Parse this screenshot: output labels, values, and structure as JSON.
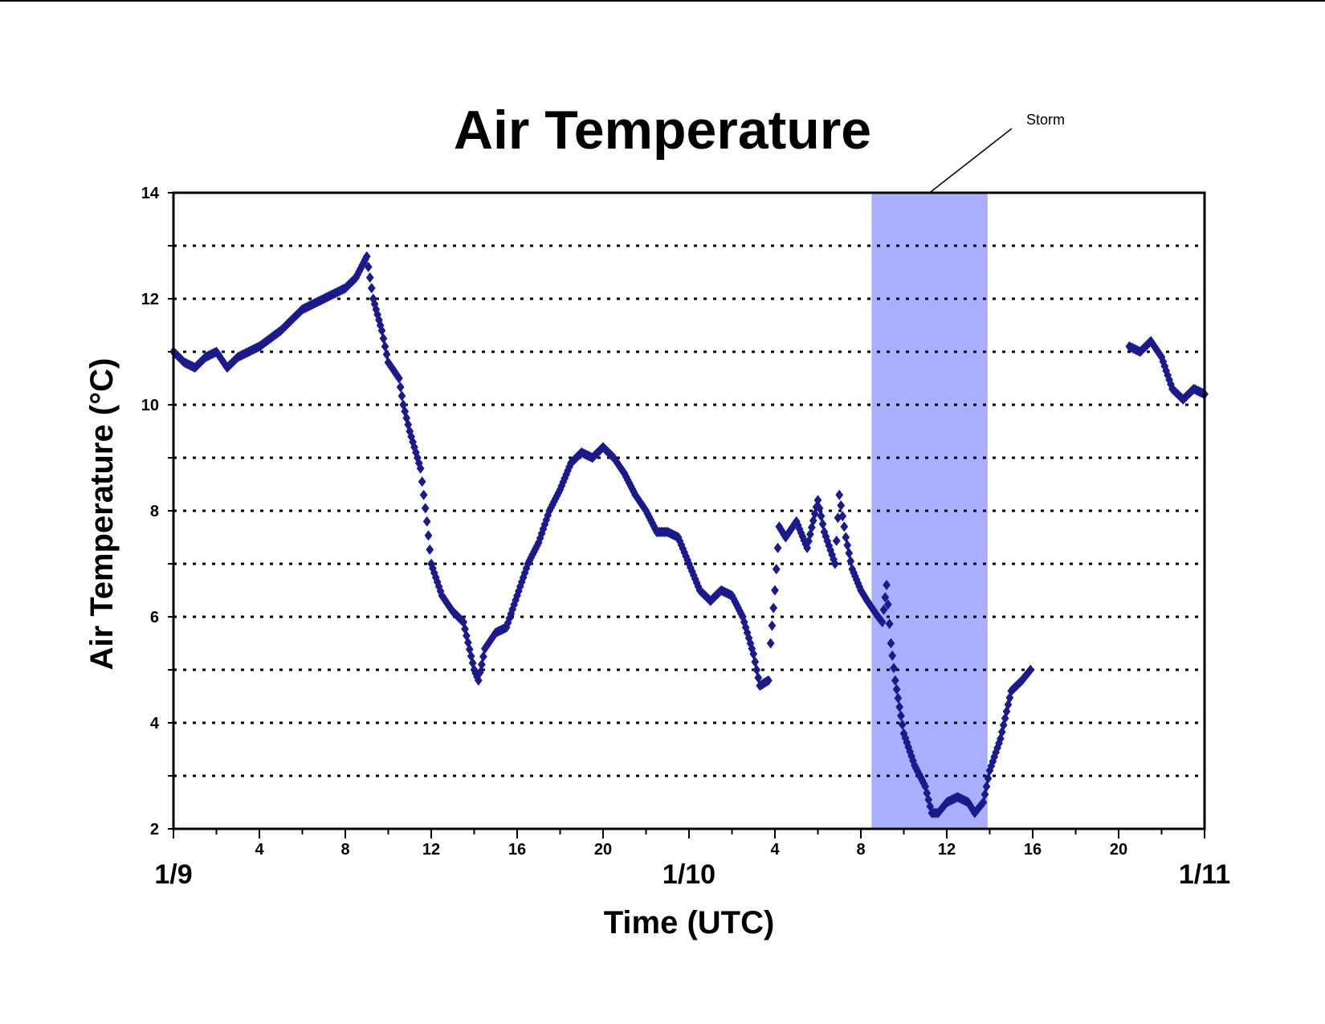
{
  "chart_data": {
    "type": "scatter",
    "title": "Air Temperature",
    "xlabel": "Time (UTC)",
    "ylabel": "Air Temperature (°C)",
    "x_unit": "hours since 1/9 00:00 UTC",
    "xlim": [
      0,
      48
    ],
    "ylim": [
      2,
      14
    ],
    "y_ticks": [
      "2",
      "4",
      "6",
      "8",
      "10",
      "12",
      "14"
    ],
    "x_hour_ticks": [
      {
        "x": 4,
        "label": "4"
      },
      {
        "x": 8,
        "label": "8"
      },
      {
        "x": 12,
        "label": "12"
      },
      {
        "x": 16,
        "label": "16"
      },
      {
        "x": 20,
        "label": "20"
      },
      {
        "x": 28,
        "label": "4"
      },
      {
        "x": 32,
        "label": "8"
      },
      {
        "x": 36,
        "label": "12"
      },
      {
        "x": 40,
        "label": "16"
      },
      {
        "x": 44,
        "label": "20"
      }
    ],
    "x_date_ticks": [
      {
        "x": 0,
        "label": "1/9"
      },
      {
        "x": 24,
        "label": "1/10"
      },
      {
        "x": 48,
        "label": "1/11"
      }
    ],
    "grid": "horizontal dotted every 1 °C",
    "marker": "diamond",
    "marker_color": "#1a1a8c",
    "highlight": {
      "label": "Storm",
      "x_start": 32.5,
      "x_end": 37.9,
      "color": "#aab0ff"
    },
    "series": [
      {
        "name": "",
        "segments": [
          [
            [
              0,
              11.0
            ],
            [
              0.5,
              10.8
            ],
            [
              1,
              10.7
            ],
            [
              1.5,
              10.9
            ],
            [
              2,
              11.0
            ],
            [
              2.5,
              10.7
            ],
            [
              3,
              10.9
            ],
            [
              4,
              11.1
            ],
            [
              5,
              11.4
            ],
            [
              6,
              11.8
            ],
            [
              7,
              12.0
            ],
            [
              8,
              12.2
            ],
            [
              8.5,
              12.4
            ],
            [
              9,
              12.8
            ],
            [
              9.3,
              12.0
            ],
            [
              9.7,
              11.4
            ],
            [
              10,
              10.8
            ],
            [
              10.5,
              10.5
            ],
            [
              10.7,
              10.0
            ],
            [
              11,
              9.5
            ],
            [
              11.5,
              8.8
            ],
            [
              11.8,
              7.8
            ],
            [
              12,
              7.0
            ],
            [
              12.5,
              6.4
            ],
            [
              13,
              6.1
            ],
            [
              13.5,
              5.9
            ],
            [
              14,
              5.0
            ],
            [
              14.2,
              4.8
            ],
            [
              14.5,
              5.4
            ],
            [
              15,
              5.7
            ],
            [
              15.5,
              5.8
            ],
            [
              16,
              6.4
            ],
            [
              16.5,
              7.0
            ],
            [
              17,
              7.4
            ],
            [
              17.5,
              8.0
            ],
            [
              18,
              8.4
            ],
            [
              18.5,
              8.9
            ],
            [
              19,
              9.1
            ],
            [
              19.5,
              9.0
            ],
            [
              20,
              9.2
            ],
            [
              20.5,
              9.0
            ],
            [
              21,
              8.7
            ],
            [
              21.5,
              8.3
            ],
            [
              22,
              8.0
            ],
            [
              22.5,
              7.6
            ],
            [
              23,
              7.6
            ],
            [
              23.5,
              7.5
            ],
            [
              24,
              7.0
            ],
            [
              24.5,
              6.5
            ],
            [
              25,
              6.3
            ],
            [
              25.5,
              6.5
            ],
            [
              26,
              6.4
            ],
            [
              26.5,
              6.0
            ],
            [
              27,
              5.3
            ],
            [
              27.3,
              4.7
            ],
            [
              27.7,
              4.8
            ]
          ],
          [
            [
              27.8,
              5.5
            ],
            [
              28,
              6.5
            ],
            [
              28.2,
              7.7
            ],
            [
              28.5,
              7.5
            ],
            [
              29,
              7.8
            ],
            [
              29.5,
              7.3
            ],
            [
              30,
              8.2
            ],
            [
              30.3,
              7.6
            ],
            [
              30.8,
              7.0
            ],
            [
              31,
              8.3
            ],
            [
              31.3,
              7.5
            ],
            [
              31.6,
              6.9
            ],
            [
              32,
              6.5
            ],
            [
              32.3,
              6.3
            ],
            [
              32.8,
              6.0
            ],
            [
              33,
              5.9
            ],
            [
              33.2,
              6.6
            ],
            [
              33.4,
              5.5
            ],
            [
              33.6,
              4.8
            ],
            [
              34,
              3.8
            ],
            [
              34.5,
              3.2
            ],
            [
              35,
              2.8
            ],
            [
              35.3,
              2.3
            ],
            [
              35.6,
              2.3
            ],
            [
              36,
              2.5
            ],
            [
              36.5,
              2.6
            ],
            [
              37,
              2.5
            ],
            [
              37.3,
              2.3
            ],
            [
              37.7,
              2.5
            ],
            [
              38,
              3.1
            ],
            [
              38.5,
              3.7
            ],
            [
              39,
              4.6
            ],
            [
              39.5,
              4.8
            ],
            [
              39.9,
              5.0
            ]
          ],
          [
            [
              44.5,
              11.1
            ],
            [
              45,
              11.0
            ],
            [
              45.5,
              11.2
            ],
            [
              46,
              10.9
            ],
            [
              46.5,
              10.3
            ],
            [
              47,
              10.1
            ],
            [
              47.5,
              10.3
            ],
            [
              48,
              10.2
            ]
          ]
        ]
      }
    ]
  }
}
